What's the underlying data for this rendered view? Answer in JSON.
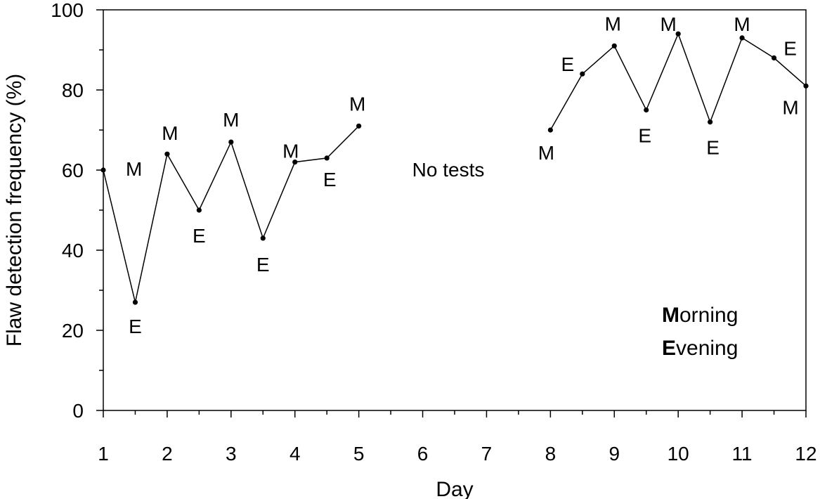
{
  "chart_data": {
    "type": "line",
    "xlabel": "Day",
    "ylabel": "Flaw detection frequency (%)",
    "xlim": [
      1,
      12
    ],
    "ylim": [
      0,
      100
    ],
    "x_ticks": [
      1,
      2,
      3,
      4,
      5,
      6,
      7,
      8,
      9,
      10,
      11,
      12
    ],
    "y_ticks": [
      0,
      20,
      40,
      60,
      80,
      100
    ],
    "grid": false,
    "legend": null,
    "series": [
      {
        "points": [
          {
            "x": 1.0,
            "y": 60,
            "label": "M"
          },
          {
            "x": 1.5,
            "y": 27,
            "label": "E"
          },
          {
            "x": 2.0,
            "y": 64,
            "label": "M"
          },
          {
            "x": 2.5,
            "y": 50,
            "label": "E"
          },
          {
            "x": 3.0,
            "y": 67,
            "label": "M"
          },
          {
            "x": 3.5,
            "y": 43,
            "label": "E"
          },
          {
            "x": 4.0,
            "y": 62,
            "label": "M"
          },
          {
            "x": 4.5,
            "y": 63,
            "label": "E"
          },
          {
            "x": 5.0,
            "y": 71,
            "label": "M"
          }
        ]
      },
      {
        "points": [
          {
            "x": 8.0,
            "y": 70,
            "label": "M"
          },
          {
            "x": 8.5,
            "y": 84,
            "label": "E"
          },
          {
            "x": 9.0,
            "y": 91,
            "label": "M"
          },
          {
            "x": 9.5,
            "y": 75,
            "label": "E"
          },
          {
            "x": 10.0,
            "y": 94,
            "label": "M"
          },
          {
            "x": 10.5,
            "y": 72,
            "label": "E"
          },
          {
            "x": 11.0,
            "y": 93,
            "label": "M"
          },
          {
            "x": 11.5,
            "y": 88,
            "label": "E"
          },
          {
            "x": 12.0,
            "y": 81,
            "label": "M"
          }
        ]
      }
    ],
    "annotations": {
      "gap_text": "No tests",
      "key": [
        {
          "bold": "M",
          "rest": "orning"
        },
        {
          "bold": "E",
          "rest": "vening"
        }
      ]
    }
  }
}
